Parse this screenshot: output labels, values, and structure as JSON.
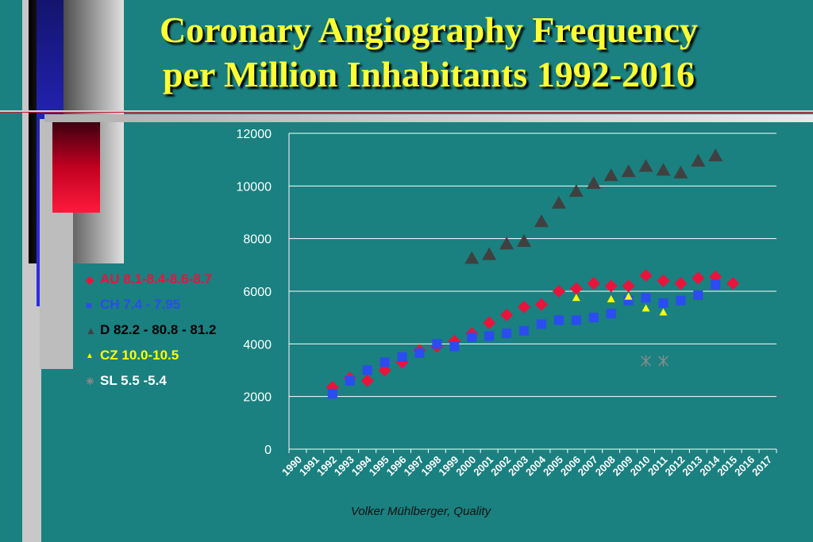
{
  "page": {
    "title_line1": "Coronary Angiography Frequency",
    "title_line2": "per Million Inhabitants 1992-2016",
    "footer": "Volker Mühlberger, Quality"
  },
  "colors": {
    "background": "#1a8080",
    "title": "#ffff33",
    "AU": "#e8143c",
    "CH": "#2a4cf0",
    "D": "#404040",
    "CZ": "#ffff00",
    "SL": "#8a8a8a"
  },
  "chart_data": {
    "type": "scatter",
    "title": "",
    "xlabel": "",
    "ylabel": "",
    "categories": [
      "1990",
      "1991",
      "1992",
      "1993",
      "1994",
      "1995",
      "1996",
      "1997",
      "1998",
      "1999",
      "2000",
      "2001",
      "2002",
      "2003",
      "2004",
      "2005",
      "2006",
      "2007",
      "2008",
      "2009",
      "2010",
      "2011",
      "2012",
      "2013",
      "2014",
      "2015",
      "2016",
      "2017"
    ],
    "ylim": [
      0,
      12000
    ],
    "yticks": [
      "0",
      "2000",
      "4000",
      "6000",
      "8000",
      "10000",
      "12000"
    ],
    "grid": true,
    "legend_position": "left",
    "series": [
      {
        "name": "AU 8.1-8.4-8.6-8.7",
        "marker": "diamond",
        "x": [
          "1992",
          "1993",
          "1994",
          "1995",
          "1996",
          "1997",
          "1998",
          "1999",
          "2000",
          "2001",
          "2002",
          "2003",
          "2004",
          "2005",
          "2006",
          "2007",
          "2008",
          "2009",
          "2010",
          "2011",
          "2012",
          "2013",
          "2014",
          "2015"
        ],
        "values": [
          2350,
          2700,
          2600,
          3000,
          3300,
          3750,
          3900,
          4100,
          4400,
          4800,
          5100,
          5400,
          5500,
          6000,
          6100,
          6300,
          6200,
          6200,
          6600,
          6400,
          6300,
          6500,
          6550,
          6300
        ]
      },
      {
        "name": "CH 7.4 - 7.95",
        "marker": "square",
        "x": [
          "1992",
          "1993",
          "1994",
          "1995",
          "1996",
          "1997",
          "1998",
          "1999",
          "2000",
          "2001",
          "2002",
          "2003",
          "2004",
          "2005",
          "2006",
          "2007",
          "2008",
          "2009",
          "2010",
          "2011",
          "2012",
          "2013",
          "2014"
        ],
        "values": [
          2100,
          2600,
          3000,
          3300,
          3500,
          3650,
          4000,
          3900,
          4250,
          4300,
          4400,
          4500,
          4750,
          4900,
          4900,
          5000,
          5150,
          5650,
          5750,
          5550,
          5650,
          5850,
          6250
        ]
      },
      {
        "name": "D  82.2 - 80.8 - 81.2",
        "marker": "triangle",
        "x": [
          "2000",
          "2001",
          "2002",
          "2003",
          "2004",
          "2005",
          "2006",
          "2007",
          "2008",
          "2009",
          "2010",
          "2011",
          "2012",
          "2013",
          "2014"
        ],
        "values": [
          7250,
          7400,
          7800,
          7900,
          8650,
          9350,
          9800,
          10100,
          10400,
          10550,
          10750,
          10600,
          10500,
          10950,
          11150
        ]
      },
      {
        "name": "CZ 10.0-10.5",
        "marker": "small-triangle",
        "x": [
          "2006",
          "2008",
          "2009",
          "2010",
          "2011"
        ],
        "values": [
          5750,
          5700,
          5800,
          5350,
          5200
        ]
      },
      {
        "name": "SL 5.5 -5.4",
        "marker": "star",
        "x": [
          "2010",
          "2011"
        ],
        "values": [
          3350,
          3350
        ]
      }
    ]
  }
}
